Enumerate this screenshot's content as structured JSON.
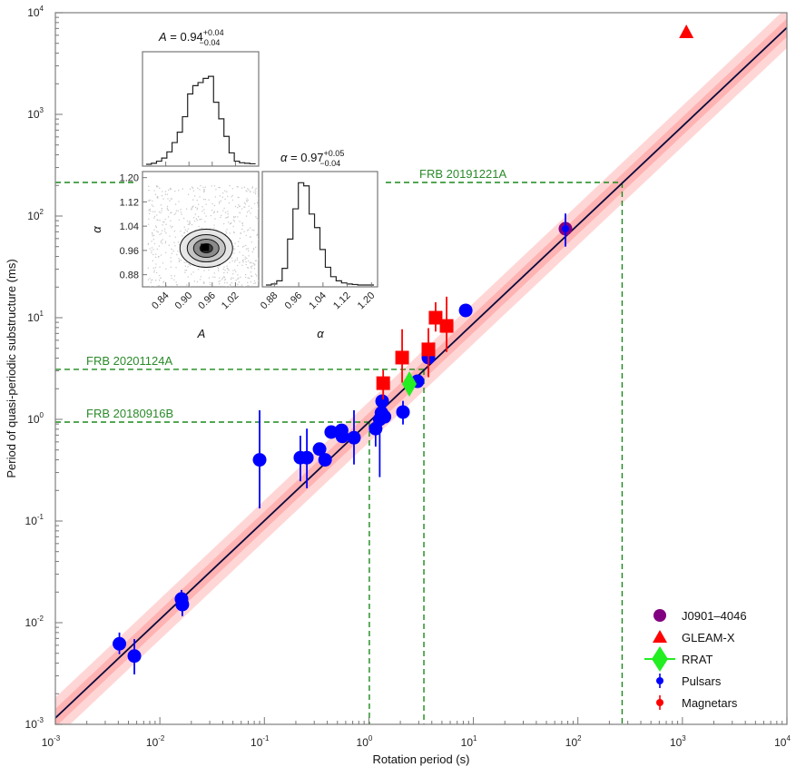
{
  "chart_data": {
    "type": "scatter",
    "xscale": "log",
    "yscale": "log",
    "xlabel": "Rotation period (s)",
    "ylabel": "Period of quasi-periodic substructure (ms)",
    "xlim": [
      0.001,
      10000
    ],
    "ylim": [
      0.001,
      10000
    ],
    "xticks": [
      {
        "exp": "-3",
        "value": 0.001
      },
      {
        "exp": "-2",
        "value": 0.01
      },
      {
        "exp": "-1",
        "value": 0.1
      },
      {
        "exp": "0",
        "value": 1
      },
      {
        "exp": "1",
        "value": 10
      },
      {
        "exp": "2",
        "value": 100
      },
      {
        "exp": "3",
        "value": 1000
      },
      {
        "exp": "4",
        "value": 10000
      }
    ],
    "yticks": [
      {
        "exp": "-3",
        "value": 0.001
      },
      {
        "exp": "-2",
        "value": 0.01
      },
      {
        "exp": "-1",
        "value": 0.1
      },
      {
        "exp": "0",
        "value": 1
      },
      {
        "exp": "1",
        "value": 10
      },
      {
        "exp": "2",
        "value": 100
      },
      {
        "exp": "3",
        "value": 1000
      },
      {
        "exp": "4",
        "value": 10000
      }
    ],
    "tick_base": "10",
    "fit": {
      "model": "y = A * x^alpha",
      "A": 0.94,
      "alpha": 0.97,
      "inner_band_dex": 0.09,
      "outer_band_dex": 0.2,
      "line_color": "#0a0a3c",
      "inner_band_color": "#ffb3b3",
      "outer_band_color": "#ffd6d6"
    },
    "series": [
      {
        "name": "Pulsars",
        "marker": "circle",
        "color": "#0000ff",
        "points": [
          {
            "x": 0.0041,
            "y": 0.0062,
            "ylo": 0.0049,
            "yhi": 0.008
          },
          {
            "x": 0.0057,
            "y": 0.0047,
            "ylo": 0.0031,
            "yhi": 0.0069
          },
          {
            "x": 0.0161,
            "y": 0.0171,
            "ylo": 0.013,
            "yhi": 0.021
          },
          {
            "x": 0.0164,
            "y": 0.0151,
            "ylo": 0.0116,
            "yhi": 0.0193
          },
          {
            "x": 0.09,
            "y": 0.4,
            "ylo": 0.133,
            "yhi": 1.23
          },
          {
            "x": 0.221,
            "y": 0.42,
            "ylo": 0.246,
            "yhi": 0.69
          },
          {
            "x": 0.255,
            "y": 0.42,
            "ylo": 0.21,
            "yhi": 0.81
          },
          {
            "x": 0.337,
            "y": 0.51
          },
          {
            "x": 0.381,
            "y": 0.4
          },
          {
            "x": 0.436,
            "y": 0.75
          },
          {
            "x": 0.548,
            "y": 0.78
          },
          {
            "x": 0.557,
            "y": 0.68
          },
          {
            "x": 0.72,
            "y": 0.66,
            "ylo": 0.36,
            "yhi": 1.23
          },
          {
            "x": 1.16,
            "y": 0.81,
            "ylo": 0.54,
            "yhi": 0.86
          },
          {
            "x": 1.27,
            "y": 1.0,
            "ylo": 0.27,
            "yhi": 1.57
          },
          {
            "x": 1.32,
            "y": 1.16
          },
          {
            "x": 1.34,
            "y": 1.51
          },
          {
            "x": 1.41,
            "y": 1.06
          },
          {
            "x": 2.12,
            "y": 1.18,
            "ylo": 0.89,
            "yhi": 1.52
          },
          {
            "x": 2.92,
            "y": 2.37
          },
          {
            "x": 3.71,
            "y": 4.05,
            "ylo": 3.4,
            "yhi": 4.7
          },
          {
            "x": 8.44,
            "y": 11.8
          },
          {
            "x": 76,
            "y": 75,
            "ylo": 50,
            "yhi": 106
          }
        ]
      },
      {
        "name": "Magnetars",
        "marker": "square",
        "color": "#ff0000",
        "points": [
          {
            "x": 1.37,
            "y": 2.27,
            "ylo": 1.57,
            "yhi": 3.06
          },
          {
            "x": 2.08,
            "y": 4.05,
            "ylo": 2.3,
            "yhi": 7.7
          },
          {
            "x": 3.71,
            "y": 4.88,
            "ylo": 2.6,
            "yhi": 7.9
          },
          {
            "x": 4.35,
            "y": 10.0,
            "ylo": 7.3,
            "yhi": 14.2
          },
          {
            "x": 5.54,
            "y": 8.3,
            "ylo": 4.6,
            "yhi": 16.1
          }
        ]
      },
      {
        "name": "RRAT",
        "marker": "diamond",
        "color": "#22ee22",
        "points": [
          {
            "x": 2.44,
            "y": 2.23
          }
        ]
      },
      {
        "name": "J0901–4046",
        "marker": "circle-large",
        "color": "#800080",
        "points": [
          {
            "x": 76,
            "y": 75
          }
        ]
      },
      {
        "name": "GLEAM-X",
        "marker": "triangle",
        "color": "#ff0000",
        "points": [
          {
            "x": 1090,
            "y": 6500
          }
        ]
      }
    ],
    "frbs": [
      {
        "label": "FRB 20191221A",
        "x": 265,
        "y": 214,
        "label_side": "right"
      },
      {
        "label": "FRB 20201124A",
        "x": 3.36,
        "y": 3.1,
        "label_side": "left"
      },
      {
        "label": "FRB 20180916B",
        "x": 1.01,
        "y": 0.94,
        "label_side": "left"
      }
    ],
    "frb_color": "#1a8a1a",
    "legend": {
      "placement": "bottom-right",
      "entries": [
        {
          "label": "J0901–4046",
          "marker": "circle-large",
          "color": "#800080"
        },
        {
          "label": "GLEAM-X",
          "marker": "triangle",
          "color": "#ff0000"
        },
        {
          "label": "RRAT",
          "marker": "diamond",
          "color": "#22ee22"
        },
        {
          "label": "Pulsars",
          "marker": "dot-err",
          "color": "#0000ff"
        },
        {
          "label": "Magnetars",
          "marker": "dot-err",
          "color": "#ff0000"
        }
      ]
    },
    "inset": {
      "A_title": {
        "var": "A",
        "eq": " = 0.94",
        "plus": "+0.04",
        "minus": "−0.04"
      },
      "alpha_title": {
        "var": "α",
        "eq": " = 0.97",
        "plus": "+0.05",
        "minus": "−0.04"
      },
      "A_label": "A",
      "alpha_label": "α",
      "A_ticks": [
        "0.84",
        "0.90",
        "0.96",
        "1.02"
      ],
      "A_tick_values": [
        0.84,
        0.9,
        0.96,
        1.02
      ],
      "A_range": [
        0.78,
        1.08
      ],
      "alpha_ticks": [
        "0.88",
        "0.96",
        "1.04",
        "1.12",
        "1.20"
      ],
      "alpha_tick_values": [
        0.88,
        0.96,
        1.04,
        1.12,
        1.2
      ],
      "alpha_range": [
        0.84,
        1.22
      ],
      "A_hist": [
        0.0,
        0.01,
        0.03,
        0.06,
        0.12,
        0.21,
        0.31,
        0.46,
        0.68,
        0.76,
        0.79,
        0.83,
        0.85,
        0.6,
        0.44,
        0.27,
        0.11,
        0.03,
        0.015,
        0.01,
        0.005
      ],
      "alpha_hist": [
        0.0,
        0.01,
        0.04,
        0.16,
        0.44,
        0.73,
        0.98,
        0.95,
        0.68,
        0.55,
        0.34,
        0.17,
        0.08,
        0.04,
        0.02,
        0.01,
        0.005,
        0.0,
        0.0,
        0.0
      ],
      "joint_peak": {
        "A": 0.94,
        "alpha": 0.97
      }
    }
  }
}
